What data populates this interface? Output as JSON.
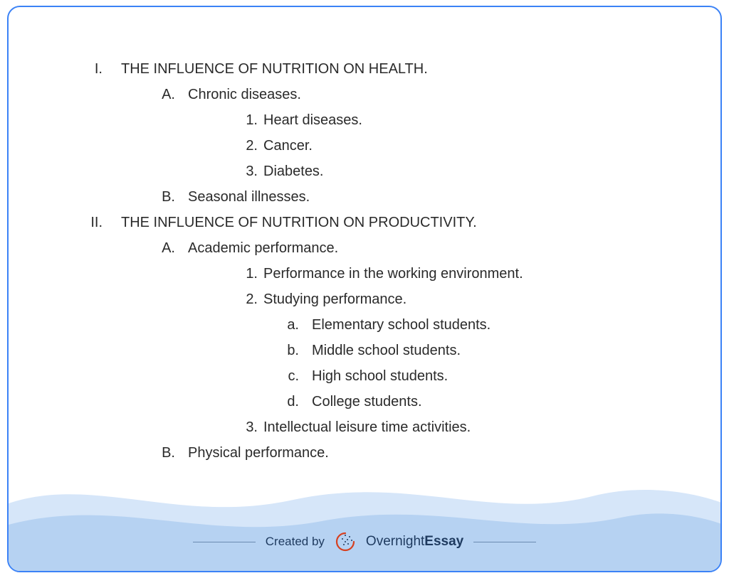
{
  "colors": {
    "border": "#3b82f6",
    "text": "#2a2a2a",
    "wave_back": "#d6e6f9",
    "wave_front": "#b6d2f2",
    "footer_text": "#1e3a5f",
    "footer_line": "#6b8bb0",
    "logo_red": "#d64020",
    "background": "#ffffff"
  },
  "typography": {
    "body_fontsize": 20,
    "footer_fontsize": 17,
    "brand_fontsize": 19,
    "font_family": "Segoe UI"
  },
  "outline": [
    {
      "level": 1,
      "marker": "I.",
      "text": "THE INFLUENCE OF NUTRITION ON HEALTH."
    },
    {
      "level": 2,
      "marker": "A.",
      "text": "Chronic diseases."
    },
    {
      "level": 3,
      "marker": "1.",
      "text": "Heart diseases."
    },
    {
      "level": 3,
      "marker": "2.",
      "text": "Cancer."
    },
    {
      "level": 3,
      "marker": "3.",
      "text": "Diabetes."
    },
    {
      "level": 2,
      "marker": "B.",
      "text": "Seasonal illnesses."
    },
    {
      "level": 1,
      "marker": "II.",
      "text": "THE INFLUENCE OF NUTRITION ON PRODUCTIVITY."
    },
    {
      "level": 2,
      "marker": "A.",
      "text": "Academic performance."
    },
    {
      "level": 3,
      "marker": "1.",
      "text": "Performance in the working environment."
    },
    {
      "level": 3,
      "marker": "2.",
      "text": "Studying performance."
    },
    {
      "level": 4,
      "marker": "a.",
      "text": "Elementary school students."
    },
    {
      "level": 4,
      "marker": "b.",
      "text": "Middle school students."
    },
    {
      "level": 4,
      "marker": "c.",
      "text": "High school students."
    },
    {
      "level": 4,
      "marker": "d.",
      "text": "College students."
    },
    {
      "level": 3,
      "marker": "3.",
      "text": "Intellectual leisure time activities."
    },
    {
      "level": 2,
      "marker": "B.",
      "text": "Physical performance."
    }
  ],
  "footer": {
    "created_by": "Created by",
    "brand_part1": "Overnight",
    "brand_part2": "Essay"
  }
}
